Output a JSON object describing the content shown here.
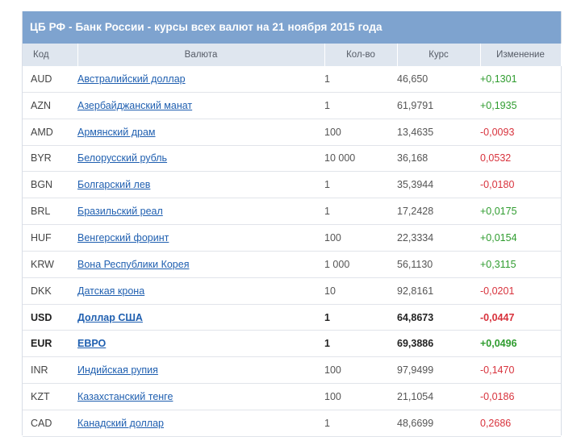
{
  "title": "ЦБ РФ - Банк России - курсы всех валют на 21 ноября 2015 года",
  "columns": {
    "code": "Код",
    "currency": "Валюта",
    "quantity": "Кол-во",
    "rate": "Курс",
    "change": "Изменение"
  },
  "rows": [
    {
      "code": "AUD",
      "name": "Австралийский доллар",
      "qty": "1",
      "rate": "46,650",
      "change": "+0,1301",
      "dir": "up",
      "bold": false
    },
    {
      "code": "AZN",
      "name": "Азербайджанский манат",
      "qty": "1",
      "rate": "61,9791",
      "change": "+0,1935",
      "dir": "up",
      "bold": false
    },
    {
      "code": "AMD",
      "name": "Армянский драм",
      "qty": "100",
      "rate": "13,4635",
      "change": "-0,0093",
      "dir": "down",
      "bold": false
    },
    {
      "code": "BYR",
      "name": "Белорусский рубль",
      "qty": "10 000",
      "rate": "36,168",
      "change": "0,0532",
      "dir": "down",
      "bold": false
    },
    {
      "code": "BGN",
      "name": "Болгарский лев",
      "qty": "1",
      "rate": "35,3944",
      "change": "-0,0180",
      "dir": "down",
      "bold": false
    },
    {
      "code": "BRL",
      "name": "Бразильский реал",
      "qty": "1",
      "rate": "17,2428",
      "change": "+0,0175",
      "dir": "up",
      "bold": false
    },
    {
      "code": "HUF",
      "name": "Венгерский форинт",
      "qty": "100",
      "rate": "22,3334",
      "change": "+0,0154",
      "dir": "up",
      "bold": false
    },
    {
      "code": "KRW",
      "name": "Вона Республики Корея",
      "qty": "1 000",
      "rate": "56,1130",
      "change": "+0,3115",
      "dir": "up",
      "bold": false
    },
    {
      "code": "DKK",
      "name": "Датская крона",
      "qty": "10",
      "rate": "92,8161",
      "change": "-0,0201",
      "dir": "down",
      "bold": false
    },
    {
      "code": "USD",
      "name": "Доллар США",
      "qty": "1",
      "rate": "64,8673",
      "change": "-0,0447",
      "dir": "down",
      "bold": true
    },
    {
      "code": "EUR",
      "name": "ЕВРО",
      "qty": "1",
      "rate": "69,3886",
      "change": "+0,0496",
      "dir": "up",
      "bold": true
    },
    {
      "code": "INR",
      "name": "Индийская рупия",
      "qty": "100",
      "rate": "97,9499",
      "change": "-0,1470",
      "dir": "down",
      "bold": false
    },
    {
      "code": "KZT",
      "name": "Казахстанский тенге",
      "qty": "100",
      "rate": "21,1054",
      "change": "-0,0186",
      "dir": "down",
      "bold": false
    },
    {
      "code": "CAD",
      "name": "Канадский доллар",
      "qty": "1",
      "rate": "48,6699",
      "change": "0,2686",
      "dir": "down",
      "bold": false
    }
  ]
}
